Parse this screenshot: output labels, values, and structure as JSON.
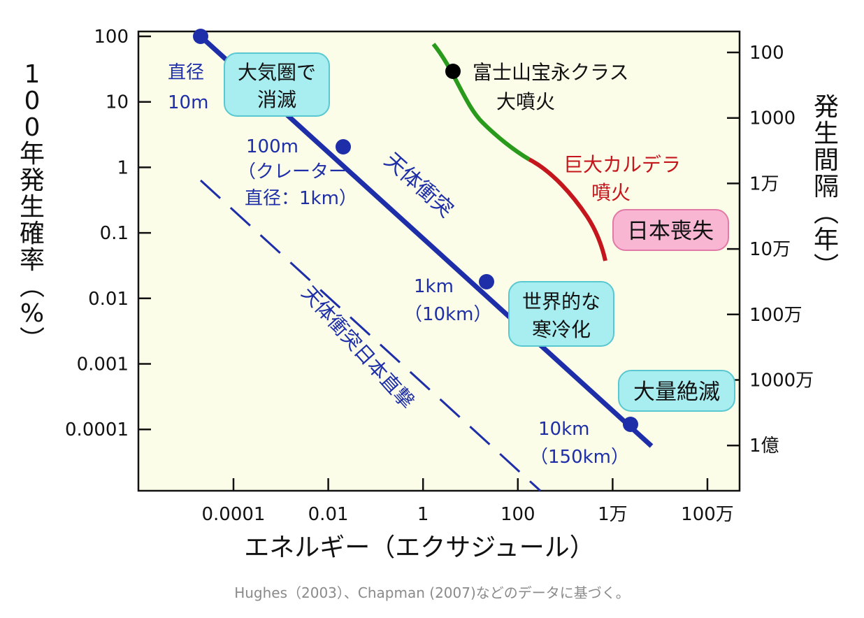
{
  "chart_data": {
    "type": "line",
    "x_scale": "log",
    "y_scale": "log",
    "xlim": [
      1e-05,
      10000000
    ],
    "ylim": [
      1e-05,
      100
    ],
    "x_ticks": [
      "0.0001",
      "0.01",
      "1",
      "100",
      "1万",
      "100万"
    ],
    "x_tick_values": [
      0.0001,
      0.01,
      1,
      100,
      10000,
      1000000
    ],
    "y_ticks": [
      "100",
      "10",
      "1",
      "0.1",
      "0.01",
      "0.001",
      "0.0001"
    ],
    "y_tick_values": [
      100,
      10,
      1,
      0.1,
      0.01,
      0.001,
      0.0001
    ],
    "y2_ticks": [
      "100",
      "1000",
      "1万",
      "10万",
      "100万",
      "1000万",
      "1億"
    ],
    "y2_tick_values": [
      100,
      1000,
      10000,
      100000,
      1000000,
      10000000,
      100000000
    ],
    "xlabel": "エネルギー（エクサジュール）",
    "ylabel": "100年発生確率（%）",
    "y2label": "発生間隔（年）",
    "grid": false,
    "series": [
      {
        "name": "天体衝突",
        "color": "#1d2ea8",
        "style": "solid",
        "x": [
          2e-05,
          0.0002,
          0.02,
          2,
          200,
          20000,
          60000
        ],
        "y": [
          80,
          8,
          0.1,
          0.0016,
          2e-05,
          1.2e-06,
          5e-07
        ],
        "markers": [
          {
            "x": 2e-05,
            "y": 80,
            "label": [
              "直径",
              "10m"
            ]
          },
          {
            "x": 0.02,
            "y": 1.6,
            "label": [
              "100m",
              "（クレーター",
              "直径：1km）"
            ]
          },
          {
            "x": 20,
            "y": 0.015,
            "label": [
              "1km",
              "（10km）"
            ]
          },
          {
            "x": 20000,
            "y": 0.0001,
            "label": [
              "10km",
              "（150km）"
            ]
          }
        ]
      },
      {
        "name": "天体衝突日本直撃",
        "color": "#1d2ea8",
        "style": "dashed",
        "x": [
          2e-05,
          300
        ],
        "y": [
          0.5,
          3e-06
        ]
      },
      {
        "name": "火山噴火",
        "segments": [
          {
            "color": "#2a9a1c",
            "x": [
              1.5,
              10,
              150
            ],
            "y": [
              60,
              3,
              1
            ]
          },
          {
            "color": "#c4161c",
            "x": [
              150,
              3000
            ],
            "y": [
              1,
              0.035
            ]
          }
        ],
        "markers": [
          {
            "x": 4,
            "y": 25,
            "label": [
              "富士山宝永クラス",
              "大噴火"
            ]
          }
        ],
        "labels": [
          [
            "巨大カルデラ",
            "噴火"
          ]
        ]
      }
    ],
    "annotations": [
      {
        "text": [
          "大気圏で",
          "消滅"
        ],
        "color": "#a8eef0"
      },
      {
        "text": [
          "世界的な",
          "寒冷化"
        ],
        "color": "#a8eef0"
      },
      {
        "text": [
          "大量絶滅"
        ],
        "color": "#a8eef0"
      },
      {
        "text": [
          "日本喪失"
        ],
        "color": "#f8b6d2"
      }
    ]
  },
  "labels": {
    "impact_line": "天体衝突",
    "japan_hit": "天体衝突日本直撃",
    "fuji_1": "富士山宝永クラス",
    "fuji_2": "大噴火",
    "caldera_1": "巨大カルデラ",
    "caldera_2": "噴火",
    "d10m_1": "直径",
    "d10m_2": "10m",
    "d100m_1": "100m",
    "d100m_2": "（クレーター",
    "d100m_3": "直径：1km）",
    "d1km_1": "1km",
    "d1km_2": "（10km）",
    "d10km_1": "10km",
    "d10km_2": "（150km）",
    "box_atm_1": "大気圏で",
    "box_atm_2": "消滅",
    "box_cold_1": "世界的な",
    "box_cold_2": "寒冷化",
    "box_extinct": "大量絶滅",
    "box_japan": "日本喪失"
  },
  "caption": "Hughes（2003）、Chapman (2007)などのデータに基づく。",
  "colors": {
    "plot_bg": "#fbfde8",
    "impact": "#1d2ea8",
    "volcano_green": "#2a9a1c",
    "volcano_red": "#c4161c",
    "box_cyan": "#a8eef0",
    "box_pink": "#f8b6d2"
  }
}
